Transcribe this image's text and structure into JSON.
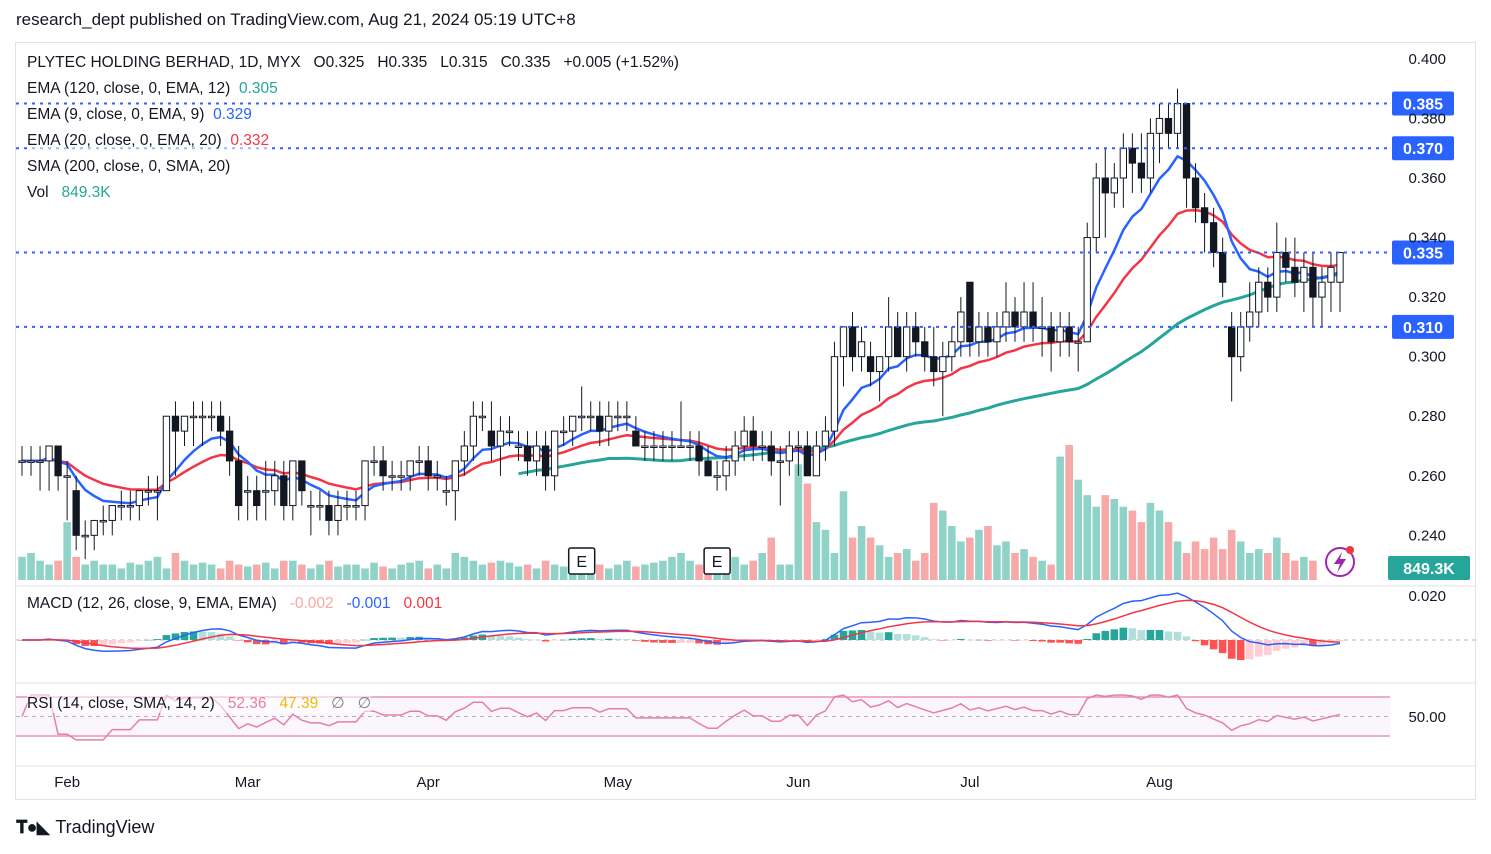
{
  "header": {
    "publisher_line": "research_dept published on TradingView.com, Aug 21, 2024 05:19 UTC+8"
  },
  "legend": {
    "symbol_line": "PLYTEC HOLDING BERHAD, 1D, MYX",
    "ohlc": {
      "open": "O0.325",
      "high": "H0.335",
      "low": "L0.315",
      "close": "C0.335",
      "change": "+0.005 (+1.52%)"
    },
    "ema120": {
      "label": "EMA (120, close, 0, EMA, 12)",
      "value": "0.305",
      "color": "#26a69a"
    },
    "ema9": {
      "label": "EMA (9, close, 0, EMA, 9)",
      "value": "0.329",
      "color": "#2962ff"
    },
    "ema20": {
      "label": "EMA (20, close, 0, EMA, 20)",
      "value": "0.332",
      "color": "#f23645"
    },
    "sma200": {
      "label": "SMA (200, close, 0, SMA, 20)"
    },
    "vol": {
      "label": "Vol",
      "value": "849.3K"
    },
    "macd": {
      "label": "MACD (12, 26, close, 9, EMA, EMA)",
      "hist": "-0.002",
      "macd": "-0.001",
      "signal": "0.001"
    },
    "rsi": {
      "label": "RSI (14, close, SMA, 14, 2)",
      "rsi": "52.36",
      "ma": "47.39",
      "na1": "∅",
      "na2": "∅"
    }
  },
  "footer": {
    "brand": "TradingView"
  },
  "chart_data": {
    "type": "candlestick",
    "symbol": "PLYTEC HOLDING BERHAD",
    "interval": "1D",
    "price_axis": {
      "ylim": [
        0.225,
        0.405
      ],
      "ticks": [
        "0.400",
        "0.380",
        "0.360",
        "0.340",
        "0.320",
        "0.300",
        "0.280",
        "0.260",
        "0.240"
      ]
    },
    "price_levels": [
      {
        "value": 0.385,
        "label": "0.385",
        "color": "#2962ff"
      },
      {
        "value": 0.37,
        "label": "0.370",
        "color": "#2962ff"
      },
      {
        "value": 0.335,
        "label": "0.335",
        "color": "#2962ff"
      },
      {
        "value": 0.31,
        "label": "0.310",
        "color": "#2962ff"
      }
    ],
    "volume_label": {
      "label": "849.3K",
      "color": "#26a69a"
    },
    "x_axis_labels": [
      {
        "label": "Feb",
        "bar": 5
      },
      {
        "label": "Mar",
        "bar": 25
      },
      {
        "label": "Apr",
        "bar": 45
      },
      {
        "label": "May",
        "bar": 66
      },
      {
        "label": "Jun",
        "bar": 86
      },
      {
        "label": "Jul",
        "bar": 105
      },
      {
        "label": "Aug",
        "bar": 126
      }
    ],
    "earnings_markers": [
      {
        "label": "E",
        "bar": 62
      },
      {
        "label": "E",
        "bar": 77
      }
    ],
    "ohlc": [
      [
        0.265,
        0.27,
        0.26,
        0.265
      ],
      [
        0.265,
        0.27,
        0.26,
        0.265
      ],
      [
        0.265,
        0.27,
        0.255,
        0.265
      ],
      [
        0.265,
        0.27,
        0.255,
        0.27
      ],
      [
        0.27,
        0.27,
        0.255,
        0.26
      ],
      [
        0.26,
        0.265,
        0.245,
        0.26
      ],
      [
        0.255,
        0.26,
        0.235,
        0.24
      ],
      [
        0.24,
        0.245,
        0.232,
        0.24
      ],
      [
        0.24,
        0.245,
        0.235,
        0.245
      ],
      [
        0.245,
        0.25,
        0.24,
        0.245
      ],
      [
        0.245,
        0.25,
        0.24,
        0.25
      ],
      [
        0.25,
        0.255,
        0.245,
        0.25
      ],
      [
        0.25,
        0.255,
        0.245,
        0.25
      ],
      [
        0.25,
        0.255,
        0.245,
        0.255
      ],
      [
        0.255,
        0.26,
        0.25,
        0.255
      ],
      [
        0.255,
        0.26,
        0.245,
        0.255
      ],
      [
        0.255,
        0.28,
        0.255,
        0.28
      ],
      [
        0.28,
        0.285,
        0.26,
        0.275
      ],
      [
        0.275,
        0.28,
        0.27,
        0.28
      ],
      [
        0.28,
        0.285,
        0.27,
        0.28
      ],
      [
        0.28,
        0.285,
        0.27,
        0.28
      ],
      [
        0.28,
        0.285,
        0.275,
        0.28
      ],
      [
        0.28,
        0.285,
        0.27,
        0.275
      ],
      [
        0.275,
        0.28,
        0.26,
        0.265
      ],
      [
        0.265,
        0.27,
        0.245,
        0.25
      ],
      [
        0.255,
        0.26,
        0.245,
        0.255
      ],
      [
        0.255,
        0.26,
        0.245,
        0.25
      ],
      [
        0.255,
        0.265,
        0.245,
        0.255
      ],
      [
        0.255,
        0.265,
        0.25,
        0.26
      ],
      [
        0.26,
        0.265,
        0.245,
        0.25
      ],
      [
        0.25,
        0.265,
        0.245,
        0.265
      ],
      [
        0.265,
        0.265,
        0.25,
        0.255
      ],
      [
        0.25,
        0.255,
        0.24,
        0.25
      ],
      [
        0.25,
        0.255,
        0.245,
        0.25
      ],
      [
        0.25,
        0.255,
        0.24,
        0.245
      ],
      [
        0.245,
        0.255,
        0.24,
        0.25
      ],
      [
        0.25,
        0.255,
        0.245,
        0.25
      ],
      [
        0.25,
        0.255,
        0.245,
        0.25
      ],
      [
        0.25,
        0.265,
        0.245,
        0.265
      ],
      [
        0.265,
        0.27,
        0.26,
        0.265
      ],
      [
        0.265,
        0.27,
        0.255,
        0.26
      ],
      [
        0.26,
        0.265,
        0.255,
        0.26
      ],
      [
        0.26,
        0.265,
        0.255,
        0.26
      ],
      [
        0.26,
        0.265,
        0.255,
        0.265
      ],
      [
        0.265,
        0.27,
        0.26,
        0.265
      ],
      [
        0.265,
        0.27,
        0.255,
        0.26
      ],
      [
        0.26,
        0.265,
        0.255,
        0.26
      ],
      [
        0.255,
        0.26,
        0.25,
        0.255
      ],
      [
        0.255,
        0.265,
        0.245,
        0.265
      ],
      [
        0.265,
        0.275,
        0.26,
        0.27
      ],
      [
        0.27,
        0.285,
        0.265,
        0.28
      ],
      [
        0.28,
        0.285,
        0.275,
        0.28
      ],
      [
        0.275,
        0.285,
        0.265,
        0.27
      ],
      [
        0.27,
        0.28,
        0.26,
        0.275
      ],
      [
        0.275,
        0.28,
        0.27,
        0.275
      ],
      [
        0.27,
        0.275,
        0.265,
        0.27
      ],
      [
        0.27,
        0.275,
        0.26,
        0.265
      ],
      [
        0.265,
        0.275,
        0.26,
        0.27
      ],
      [
        0.27,
        0.275,
        0.255,
        0.26
      ],
      [
        0.26,
        0.275,
        0.255,
        0.275
      ],
      [
        0.275,
        0.28,
        0.27,
        0.275
      ],
      [
        0.275,
        0.28,
        0.27,
        0.28
      ],
      [
        0.28,
        0.29,
        0.275,
        0.28
      ],
      [
        0.28,
        0.285,
        0.275,
        0.28
      ],
      [
        0.28,
        0.285,
        0.27,
        0.275
      ],
      [
        0.275,
        0.285,
        0.27,
        0.28
      ],
      [
        0.28,
        0.285,
        0.275,
        0.28
      ],
      [
        0.28,
        0.285,
        0.275,
        0.28
      ],
      [
        0.275,
        0.28,
        0.27,
        0.27
      ],
      [
        0.27,
        0.275,
        0.265,
        0.27
      ],
      [
        0.27,
        0.275,
        0.265,
        0.27
      ],
      [
        0.27,
        0.275,
        0.265,
        0.27
      ],
      [
        0.27,
        0.275,
        0.265,
        0.27
      ],
      [
        0.27,
        0.285,
        0.27,
        0.27
      ],
      [
        0.27,
        0.275,
        0.265,
        0.27
      ],
      [
        0.27,
        0.275,
        0.26,
        0.265
      ],
      [
        0.265,
        0.27,
        0.26,
        0.26
      ],
      [
        0.26,
        0.265,
        0.255,
        0.26
      ],
      [
        0.26,
        0.27,
        0.255,
        0.265
      ],
      [
        0.265,
        0.275,
        0.26,
        0.27
      ],
      [
        0.27,
        0.28,
        0.265,
        0.275
      ],
      [
        0.275,
        0.28,
        0.265,
        0.27
      ],
      [
        0.27,
        0.275,
        0.265,
        0.27
      ],
      [
        0.27,
        0.275,
        0.26,
        0.265
      ],
      [
        0.265,
        0.27,
        0.25,
        0.265
      ],
      [
        0.265,
        0.275,
        0.26,
        0.27
      ],
      [
        0.27,
        0.275,
        0.26,
        0.27
      ],
      [
        0.27,
        0.275,
        0.26,
        0.26
      ],
      [
        0.26,
        0.275,
        0.26,
        0.27
      ],
      [
        0.27,
        0.28,
        0.265,
        0.275
      ],
      [
        0.275,
        0.305,
        0.27,
        0.3
      ],
      [
        0.3,
        0.31,
        0.29,
        0.31
      ],
      [
        0.31,
        0.315,
        0.295,
        0.3
      ],
      [
        0.3,
        0.31,
        0.295,
        0.305
      ],
      [
        0.3,
        0.305,
        0.29,
        0.295
      ],
      [
        0.295,
        0.3,
        0.285,
        0.3
      ],
      [
        0.3,
        0.32,
        0.295,
        0.31
      ],
      [
        0.31,
        0.315,
        0.3,
        0.3
      ],
      [
        0.3,
        0.315,
        0.295,
        0.31
      ],
      [
        0.31,
        0.315,
        0.3,
        0.305
      ],
      [
        0.305,
        0.31,
        0.295,
        0.3
      ],
      [
        0.3,
        0.31,
        0.29,
        0.295
      ],
      [
        0.295,
        0.305,
        0.28,
        0.3
      ],
      [
        0.3,
        0.31,
        0.295,
        0.305
      ],
      [
        0.305,
        0.32,
        0.3,
        0.315
      ],
      [
        0.325,
        0.325,
        0.3,
        0.305
      ],
      [
        0.305,
        0.315,
        0.3,
        0.31
      ],
      [
        0.31,
        0.315,
        0.3,
        0.305
      ],
      [
        0.305,
        0.315,
        0.3,
        0.31
      ],
      [
        0.31,
        0.325,
        0.305,
        0.315
      ],
      [
        0.315,
        0.32,
        0.305,
        0.31
      ],
      [
        0.31,
        0.325,
        0.305,
        0.315
      ],
      [
        0.315,
        0.325,
        0.305,
        0.31
      ],
      [
        0.31,
        0.32,
        0.3,
        0.31
      ],
      [
        0.31,
        0.315,
        0.295,
        0.305
      ],
      [
        0.305,
        0.315,
        0.3,
        0.31
      ],
      [
        0.31,
        0.315,
        0.3,
        0.305
      ],
      [
        0.305,
        0.31,
        0.295,
        0.305
      ],
      [
        0.305,
        0.345,
        0.305,
        0.34
      ],
      [
        0.34,
        0.365,
        0.335,
        0.36
      ],
      [
        0.36,
        0.37,
        0.34,
        0.355
      ],
      [
        0.355,
        0.365,
        0.35,
        0.36
      ],
      [
        0.36,
        0.375,
        0.35,
        0.37
      ],
      [
        0.37,
        0.375,
        0.355,
        0.365
      ],
      [
        0.365,
        0.375,
        0.355,
        0.36
      ],
      [
        0.36,
        0.38,
        0.355,
        0.375
      ],
      [
        0.375,
        0.385,
        0.365,
        0.38
      ],
      [
        0.38,
        0.385,
        0.37,
        0.375
      ],
      [
        0.375,
        0.39,
        0.37,
        0.385
      ],
      [
        0.385,
        0.385,
        0.35,
        0.36
      ],
      [
        0.36,
        0.365,
        0.345,
        0.35
      ],
      [
        0.35,
        0.355,
        0.335,
        0.345
      ],
      [
        0.345,
        0.35,
        0.33,
        0.335
      ],
      [
        0.335,
        0.34,
        0.32,
        0.325
      ],
      [
        0.31,
        0.315,
        0.285,
        0.3
      ],
      [
        0.3,
        0.315,
        0.295,
        0.31
      ],
      [
        0.31,
        0.325,
        0.305,
        0.315
      ],
      [
        0.315,
        0.33,
        0.31,
        0.325
      ],
      [
        0.325,
        0.33,
        0.315,
        0.32
      ],
      [
        0.32,
        0.345,
        0.315,
        0.335
      ],
      [
        0.335,
        0.34,
        0.325,
        0.33
      ],
      [
        0.33,
        0.34,
        0.32,
        0.325
      ],
      [
        0.325,
        0.335,
        0.315,
        0.33
      ],
      [
        0.33,
        0.335,
        0.31,
        0.32
      ],
      [
        0.32,
        0.33,
        0.31,
        0.325
      ],
      [
        0.325,
        0.335,
        0.315,
        0.33
      ],
      [
        0.325,
        0.335,
        0.315,
        0.335
      ]
    ],
    "volume": [
      12,
      14,
      10,
      8,
      10,
      30,
      12,
      8,
      10,
      8,
      8,
      6,
      9,
      8,
      10,
      12,
      6,
      14,
      10,
      8,
      9,
      8,
      6,
      10,
      8,
      7,
      8,
      9,
      6,
      10,
      10,
      8,
      6,
      8,
      10,
      7,
      8,
      8,
      6,
      9,
      7,
      6,
      8,
      9,
      10,
      6,
      8,
      6,
      14,
      12,
      10,
      8,
      9,
      10,
      9,
      7,
      8,
      6,
      10,
      8,
      7,
      12,
      10,
      9,
      8,
      6,
      8,
      10,
      7,
      8,
      9,
      10,
      12,
      14,
      10,
      8,
      8,
      10,
      9,
      12,
      8,
      10,
      14,
      22,
      8,
      8,
      60,
      50,
      30,
      26,
      14,
      46,
      22,
      28,
      22,
      18,
      12,
      14,
      16,
      10,
      14,
      40,
      36,
      28,
      20,
      22,
      26,
      28,
      18,
      20,
      14,
      16,
      12,
      10,
      8,
      64,
      70,
      52,
      44,
      38,
      44,
      42,
      38,
      36,
      30,
      40,
      36,
      30,
      20,
      14,
      20,
      16,
      22,
      16,
      26,
      20,
      14,
      16,
      14,
      22,
      14,
      10,
      12,
      10
    ],
    "rsi_levels": {
      "upper": 70,
      "middle": 50,
      "lower": 30,
      "label": "50.00"
    },
    "macd_axis": {
      "tick": "0.020"
    }
  }
}
